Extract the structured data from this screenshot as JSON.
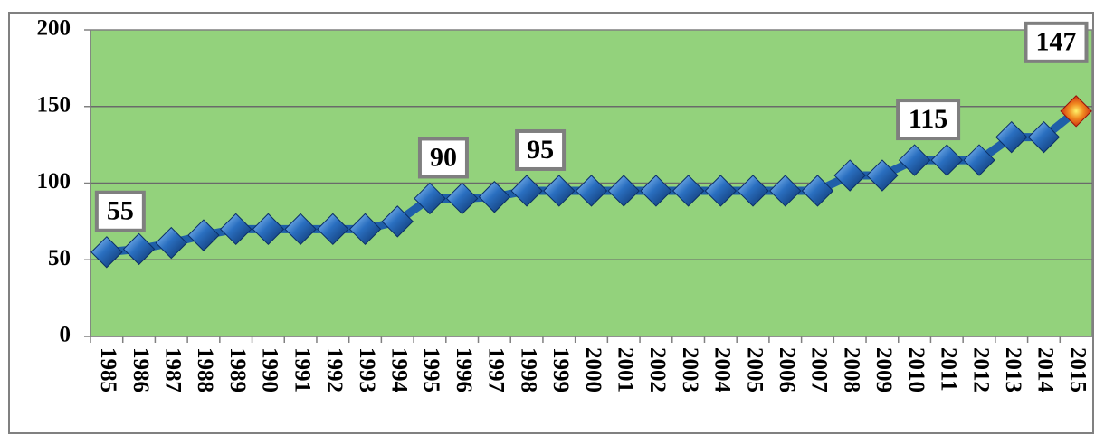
{
  "chart_data": {
    "type": "line",
    "categories": [
      "1985",
      "1986",
      "1987",
      "1988",
      "1989",
      "1990",
      "1991",
      "1992",
      "1993",
      "1994",
      "1995",
      "1996",
      "1997",
      "1998",
      "1999",
      "2000",
      "2001",
      "2002",
      "2003",
      "2004",
      "2005",
      "2006",
      "2007",
      "2008",
      "2009",
      "2010",
      "2011",
      "2012",
      "2013",
      "2014",
      "2015"
    ],
    "series": [
      {
        "color": "#1f5fa8",
        "last_color": "#e8201a",
        "values": [
          55,
          57,
          61,
          66,
          70,
          70,
          70,
          70,
          70,
          75,
          90,
          90,
          91,
          95,
          95,
          95,
          95,
          95,
          95,
          95,
          95,
          95,
          95,
          105,
          105,
          115,
          115,
          115,
          130,
          130,
          147
        ],
        "value_labels": [
          "55",
          null,
          null,
          null,
          null,
          null,
          null,
          null,
          null,
          null,
          "90",
          null,
          null,
          "95",
          null,
          null,
          null,
          null,
          null,
          null,
          null,
          null,
          null,
          null,
          null,
          "115",
          null,
          null,
          null,
          null,
          "147"
        ]
      }
    ],
    "ylim": [
      0,
      200
    ],
    "yticks": [
      0,
      50,
      100,
      150,
      200
    ],
    "grid": true,
    "plot_color": "#93d27c"
  }
}
